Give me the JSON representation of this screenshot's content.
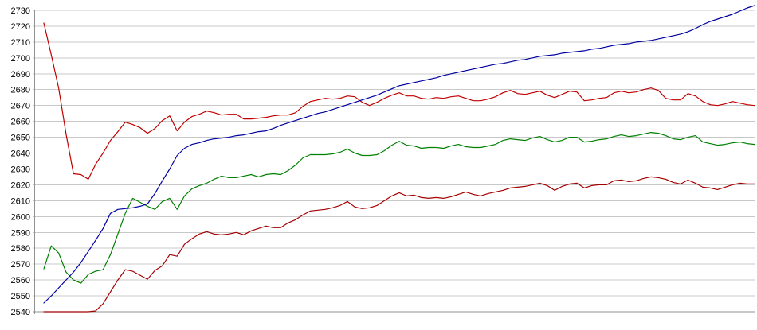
{
  "page": {
    "background": "#ffffff"
  },
  "chart_data": {
    "type": "line",
    "title": "",
    "xlabel": "",
    "ylabel": "",
    "legend": "none",
    "grid": "horizontal",
    "ylim": [
      2540,
      2730
    ],
    "ytick_step": 10,
    "yticks": [
      2540,
      2550,
      2560,
      2570,
      2580,
      2590,
      2600,
      2610,
      2620,
      2630,
      2640,
      2650,
      2660,
      2670,
      2680,
      2690,
      2700,
      2710,
      2720,
      2730
    ],
    "x_points": 97,
    "x_labels_visible": false,
    "axis_color": "#919191",
    "grid_color": "#c8c8c8",
    "label_color": "#000000",
    "series": [
      {
        "name": "red-line-upper",
        "color": "#c00000",
        "values": [
          2722,
          2702,
          2681,
          2652,
          2627,
          2626.5,
          2623.5,
          2633,
          2640,
          2648,
          2653.5,
          2659.5,
          2658,
          2656,
          2652.5,
          2655.5,
          2660.5,
          2663.5,
          2654,
          2659.5,
          2663,
          2664.5,
          2666.5,
          2665.5,
          2664,
          2664.5,
          2664.5,
          2661.5,
          2661.5,
          2662,
          2662.5,
          2663.5,
          2664,
          2664,
          2665.5,
          2669.5,
          2672.5,
          2673.5,
          2674.5,
          2674,
          2674.5,
          2676,
          2675.5,
          2672,
          2670,
          2672,
          2674.5,
          2676.5,
          2678,
          2676,
          2676,
          2674.5,
          2674,
          2675,
          2674.5,
          2675.5,
          2676,
          2674.5,
          2673,
          2673,
          2674,
          2675.5,
          2678,
          2679.5,
          2677.5,
          2677,
          2678,
          2679,
          2676.5,
          2675,
          2677,
          2679,
          2678.5,
          2673,
          2673.5,
          2674.5,
          2675,
          2678,
          2679,
          2678,
          2678.5,
          2680,
          2681,
          2679.5,
          2674.5,
          2673.5,
          2673.5,
          2677.5,
          2676,
          2672.5,
          2670.5,
          2670,
          2671,
          2672.5,
          2671.5,
          2670.5,
          2670
        ]
      },
      {
        "name": "green-line",
        "color": "#008000",
        "values": [
          2567,
          2581.5,
          2577,
          2565,
          2560,
          2558,
          2563.5,
          2565.5,
          2566.5,
          2576,
          2589,
          2602,
          2611.5,
          2609,
          2606.5,
          2604.5,
          2609.5,
          2611.5,
          2604.5,
          2613,
          2617.5,
          2619.5,
          2621,
          2623.5,
          2625.5,
          2624.5,
          2624.5,
          2625.5,
          2626.5,
          2625,
          2626.5,
          2627,
          2626.5,
          2629,
          2632.5,
          2637,
          2639,
          2639,
          2639,
          2639.5,
          2640.5,
          2642.5,
          2640,
          2638.5,
          2638.5,
          2639,
          2641.5,
          2645,
          2647.5,
          2645,
          2644.5,
          2643,
          2643.5,
          2643.5,
          2643,
          2644.5,
          2645.5,
          2644,
          2643.5,
          2643.5,
          2644.5,
          2645.5,
          2648,
          2649,
          2648.5,
          2648,
          2649.5,
          2650.5,
          2648.5,
          2647,
          2648,
          2650,
          2650,
          2647,
          2647.5,
          2648.5,
          2649,
          2650.5,
          2651.5,
          2650.5,
          2651,
          2652,
          2653,
          2652.5,
          2651,
          2649,
          2648.5,
          2650,
          2651,
          2647,
          2646,
          2645,
          2645.5,
          2646.5,
          2647,
          2646,
          2645.5
        ]
      },
      {
        "name": "red-line-lower",
        "color": "#a40000",
        "values": [
          2540,
          2540,
          2540,
          2540,
          2540,
          2540,
          2540,
          2540.5,
          2545,
          2552.5,
          2560,
          2566.5,
          2565.5,
          2563,
          2560.5,
          2566,
          2569,
          2576,
          2575,
          2582.5,
          2586,
          2589,
          2590.5,
          2589,
          2588.5,
          2589,
          2590,
          2588.5,
          2591,
          2592.5,
          2594,
          2593,
          2593,
          2596,
          2598,
          2601,
          2603.5,
          2604,
          2604.5,
          2605.5,
          2607,
          2609.5,
          2606,
          2605,
          2605.5,
          2607,
          2610,
          2613,
          2615,
          2613,
          2613.5,
          2612,
          2611.5,
          2612,
          2611.5,
          2612.5,
          2614,
          2615.5,
          2614,
          2613,
          2614.5,
          2615.5,
          2616.5,
          2618,
          2618.5,
          2619,
          2620,
          2621,
          2619.5,
          2616.5,
          2619,
          2620.5,
          2621,
          2618,
          2619.5,
          2620,
          2620,
          2622.5,
          2623,
          2622,
          2622.5,
          2624,
          2625,
          2624.5,
          2623.5,
          2621.5,
          2620.5,
          2623,
          2621,
          2618.5,
          2618,
          2617,
          2618.5,
          2620,
          2621,
          2620.5,
          2620.5
        ]
      },
      {
        "name": "blue-line",
        "color": "#0000a0",
        "values": [
          2545.5,
          2550,
          2555,
          2560,
          2565,
          2571,
          2578,
          2585,
          2592.5,
          2602,
          2604.5,
          2605,
          2605.5,
          2606.5,
          2608,
          2614.5,
          2622.5,
          2630,
          2638.5,
          2643,
          2645.5,
          2646.5,
          2648,
          2649,
          2649.5,
          2650,
          2651,
          2651.5,
          2652.5,
          2653.5,
          2654,
          2655.5,
          2657.5,
          2659,
          2660.5,
          2662,
          2663.5,
          2665,
          2666,
          2667.5,
          2669,
          2670.5,
          2672,
          2673.5,
          2675,
          2676.5,
          2678.5,
          2680.5,
          2682.5,
          2683.5,
          2684.5,
          2685.5,
          2686.5,
          2687.5,
          2689,
          2690,
          2691,
          2692,
          2693,
          2694,
          2695,
          2696,
          2696.5,
          2697.5,
          2698.5,
          2699,
          2700,
          2701,
          2701.5,
          2702,
          2703,
          2703.5,
          2704,
          2704.5,
          2705.5,
          2706,
          2707,
          2708,
          2708.5,
          2709,
          2710,
          2710.5,
          2711,
          2712,
          2713,
          2714,
          2715,
          2716.5,
          2718.5,
          2721,
          2723,
          2724.5,
          2726,
          2727.5,
          2729.5,
          2731.5,
          2733
        ]
      }
    ]
  }
}
